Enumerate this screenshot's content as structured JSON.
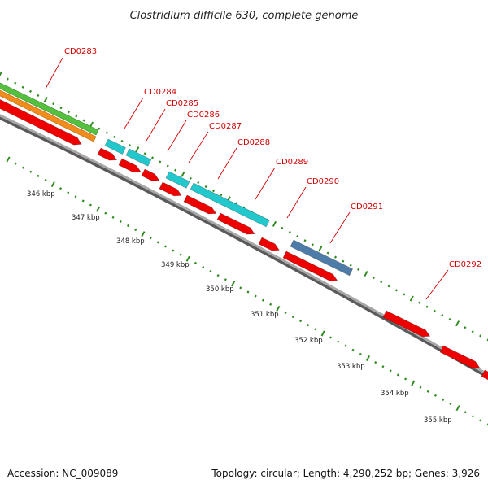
{
  "title": "Clostridium difficile 630, complete genome",
  "footer": {
    "accession": "Accession: NC_009089",
    "summary": "Topology: circular; Length: 4,290,252 bp; Genes: 3,926"
  },
  "colors": {
    "gene_red": "#ee0000",
    "cds_cyan": "#22c8cc",
    "cds_blue": "#4d7ca8",
    "track_green": "#55c040",
    "track_orange": "#f08c1c",
    "backbone": "#888888",
    "tick_green": "#2e8b1e",
    "label_red": "#d40000"
  },
  "gene_labels": [
    "CD0283",
    "CD0284",
    "CD0285",
    "CD0286",
    "CD0287",
    "CD0288",
    "CD0289",
    "CD0290",
    "CD0291",
    "CD0292"
  ],
  "kbp_labels": [
    "346 kbp",
    "347 kbp",
    "348 kbp",
    "349 kbp",
    "350 kbp",
    "351 kbp",
    "352 kbp",
    "353 kbp",
    "354 kbp",
    "355 kbp"
  ]
}
